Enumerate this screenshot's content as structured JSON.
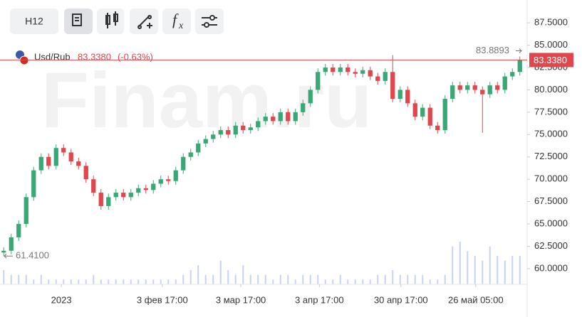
{
  "toolbar": {
    "interval": "H12",
    "function_label": "f",
    "function_sub": "x"
  },
  "chart_data": {
    "type": "candlestick",
    "watermark": "Finam.ru",
    "symbol": "Usd/Rub",
    "last_label": "83.3380",
    "change_label": "(-0.63%)",
    "up_color": "#3aa876",
    "down_color": "#e0464c",
    "volume_color": "#c9d3f0",
    "open": [
      61.8,
      62.0,
      63.5,
      65.0,
      68.0,
      71.0,
      72.5,
      71.5,
      73.5,
      73.0,
      72.0,
      71.5,
      70.0,
      68.5,
      67.0,
      68.0,
      68.5,
      68.0,
      68.5,
      69.0,
      68.8,
      69.5,
      70.0,
      69.8,
      71.0,
      72.5,
      73.0,
      74.0,
      74.5,
      75.0,
      75.5,
      75.0,
      76.0,
      75.5,
      75.8,
      76.5,
      77.0,
      76.5,
      77.5,
      76.5,
      77.5,
      78.5,
      80.0,
      82.0,
      82.5,
      82.0,
      82.5,
      82.0,
      81.8,
      82.2,
      81.5,
      81.0,
      82.0,
      79.0,
      80.0,
      78.5,
      77.0,
      78.0,
      76.0,
      75.5,
      79.0,
      80.5,
      80.0,
      80.5,
      80.0,
      79.5,
      80.5,
      80.0,
      81.5,
      82.0
    ],
    "high": [
      62.4,
      63.9,
      65.4,
      68.4,
      71.4,
      72.9,
      72.9,
      73.9,
      73.9,
      73.4,
      72.4,
      71.9,
      70.4,
      68.9,
      68.4,
      68.9,
      68.9,
      68.9,
      69.4,
      69.4,
      69.9,
      70.4,
      70.4,
      71.4,
      72.9,
      73.4,
      74.4,
      74.9,
      75.4,
      75.9,
      75.9,
      76.4,
      76.4,
      76.2,
      76.9,
      77.4,
      77.4,
      77.9,
      77.9,
      77.9,
      78.9,
      80.4,
      82.4,
      82.9,
      82.9,
      82.9,
      82.9,
      82.4,
      82.6,
      82.6,
      81.9,
      82.4,
      83.8893,
      80.4,
      80.4,
      78.9,
      78.4,
      78.4,
      76.4,
      79.4,
      80.9,
      80.9,
      80.9,
      80.9,
      80.4,
      80.9,
      80.9,
      81.9,
      82.4,
      83.738
    ],
    "low": [
      61.41,
      61.6,
      63.1,
      64.6,
      67.6,
      70.6,
      71.1,
      71.1,
      72.6,
      71.6,
      71.1,
      69.6,
      68.1,
      66.6,
      66.6,
      67.6,
      67.6,
      67.6,
      68.1,
      68.4,
      68.4,
      69.1,
      69.4,
      69.4,
      70.6,
      72.1,
      72.6,
      73.6,
      74.1,
      74.6,
      74.6,
      74.6,
      75.1,
      75.1,
      75.4,
      76.1,
      76.1,
      76.1,
      76.1,
      76.1,
      77.1,
      78.1,
      79.6,
      81.6,
      81.6,
      81.6,
      81.6,
      81.4,
      81.4,
      81.1,
      80.6,
      80.6,
      78.6,
      78.6,
      78.1,
      76.6,
      76.6,
      75.6,
      75.1,
      75.1,
      78.6,
      79.6,
      79.6,
      79.6,
      75.2,
      79.1,
      79.6,
      79.6,
      81.1,
      81.6
    ],
    "close": [
      62.0,
      63.5,
      65.0,
      68.0,
      71.0,
      72.5,
      71.5,
      73.5,
      73.0,
      72.0,
      71.5,
      70.0,
      68.5,
      67.0,
      68.0,
      68.5,
      68.0,
      68.5,
      69.0,
      68.8,
      69.5,
      70.0,
      69.8,
      71.0,
      72.5,
      73.0,
      74.0,
      74.5,
      75.0,
      75.5,
      75.0,
      76.0,
      75.5,
      75.8,
      76.5,
      77.0,
      76.5,
      77.5,
      76.5,
      77.5,
      78.5,
      80.0,
      82.0,
      82.5,
      82.0,
      82.5,
      82.0,
      81.8,
      82.2,
      81.5,
      81.0,
      82.0,
      79.0,
      80.0,
      78.5,
      77.0,
      78.0,
      76.0,
      75.5,
      79.0,
      80.5,
      80.0,
      80.5,
      80.0,
      79.5,
      80.5,
      80.0,
      81.5,
      82.0,
      83.338
    ],
    "volume": [
      3,
      2,
      2,
      2,
      1,
      2,
      1,
      1,
      1,
      1,
      1,
      1,
      2,
      1,
      1,
      1,
      1,
      1,
      1,
      1,
      1,
      1,
      1,
      1,
      2,
      3,
      4,
      2,
      2,
      5,
      3,
      2,
      4,
      2,
      2,
      2,
      1,
      2,
      2,
      1,
      2,
      2,
      2,
      1,
      1,
      2,
      1,
      1,
      1,
      1,
      2,
      2,
      3,
      2,
      2,
      2,
      2,
      1,
      1,
      2,
      8,
      9,
      7,
      6,
      5,
      8,
      6,
      5,
      6,
      6
    ],
    "xlim": [
      -0.5,
      69.5
    ],
    "xticks": [
      {
        "value": 7.7,
        "label": "2023"
      },
      {
        "value": 21.2,
        "label": "3 фев 17:00"
      },
      {
        "value": 31.7,
        "label": "3 мар 17:00"
      },
      {
        "value": 42.2,
        "label": "3 апр 17:00"
      },
      {
        "value": 53.1,
        "label": "30 апр 17:00"
      },
      {
        "value": 63.1,
        "label": "26 май 05:00"
      }
    ],
    "ylim": [
      58.25,
      90.05
    ],
    "yticks": [
      {
        "value": 60,
        "label": "60.0000"
      },
      {
        "value": 62.5,
        "label": "62.5000"
      },
      {
        "value": 65,
        "label": "65.0000"
      },
      {
        "value": 67.5,
        "label": "67.5000"
      },
      {
        "value": 70,
        "label": "70.0000"
      },
      {
        "value": 72.5,
        "label": "72.5000"
      },
      {
        "value": 75,
        "label": "75.0000"
      },
      {
        "value": 77.5,
        "label": "77.5000"
      },
      {
        "value": 80,
        "label": "80.0000"
      },
      {
        "value": 82.5,
        "label": "82.5000"
      },
      {
        "value": 85,
        "label": "85.0000"
      },
      {
        "value": 87.5,
        "label": "87.5000"
      }
    ],
    "price_line": {
      "value": 83.338,
      "label": "83.3380",
      "color": "#e0464c"
    },
    "high_marker": {
      "value": 83.8893,
      "label": "83.8893"
    },
    "low_marker": {
      "value": 61.41,
      "label": "61.4100"
    }
  }
}
